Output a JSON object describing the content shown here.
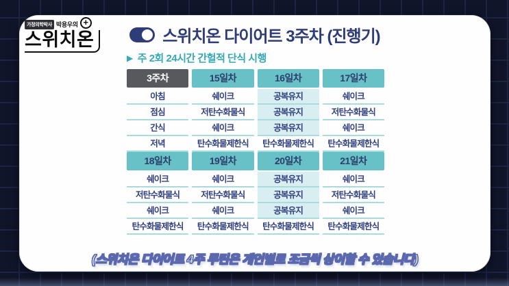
{
  "logo": {
    "badge": "가정의학박사",
    "author": "박용우의",
    "brand": "스위치온",
    "plus": "+"
  },
  "header": {
    "title": "스위치온 다이어트 3주차 (진행기)",
    "subtitle_arrow": "▶",
    "subtitle": "주 2회 24시간 간헐적 단식 시행"
  },
  "tables": [
    {
      "headers": [
        {
          "label": "3주차",
          "variant": "dark"
        },
        {
          "label": "15일차",
          "variant": "teal"
        },
        {
          "label": "16일차",
          "variant": "teal"
        },
        {
          "label": "17일차",
          "variant": "teal"
        }
      ],
      "rows": [
        [
          {
            "text": "아침"
          },
          {
            "text": "쉐이크"
          },
          {
            "text": "공복유지",
            "highlight": true
          },
          {
            "text": "쉐이크"
          }
        ],
        [
          {
            "text": "점심"
          },
          {
            "text": "저탄수화물식"
          },
          {
            "text": "공복유지",
            "highlight": true
          },
          {
            "text": "저탄수화물식"
          }
        ],
        [
          {
            "text": "간식"
          },
          {
            "text": "쉐이크"
          },
          {
            "text": "공복유지",
            "highlight": true
          },
          {
            "text": "쉐이크"
          }
        ],
        [
          {
            "text": "저녁"
          },
          {
            "text": "탄수화물제한식"
          },
          {
            "text": "탄수화물제한식"
          },
          {
            "text": "탄수화물제한식"
          }
        ]
      ]
    },
    {
      "headers": [
        {
          "label": "18일차",
          "variant": "teal"
        },
        {
          "label": "19일차",
          "variant": "teal"
        },
        {
          "label": "20일차",
          "variant": "teal"
        },
        {
          "label": "21일차",
          "variant": "teal"
        }
      ],
      "rows": [
        [
          {
            "text": "쉐이크"
          },
          {
            "text": "쉐이크"
          },
          {
            "text": "공복유지",
            "highlight": true
          },
          {
            "text": "쉐이크"
          }
        ],
        [
          {
            "text": "저탄수화물식"
          },
          {
            "text": "저탄수화물식"
          },
          {
            "text": "공복유지",
            "highlight": true
          },
          {
            "text": "저탄수화물식"
          }
        ],
        [
          {
            "text": "쉐이크"
          },
          {
            "text": "쉐이크"
          },
          {
            "text": "공복유지",
            "highlight": true
          },
          {
            "text": "쉐이크"
          }
        ],
        [
          {
            "text": "탄수화물제한식"
          },
          {
            "text": "탄수화물제한식"
          },
          {
            "text": "탄수화물제한식"
          },
          {
            "text": "탄수화물제한식"
          }
        ]
      ]
    }
  ],
  "footnote": "(스위치온 다이어트 4주 루틴은 개인별로 조금씩 상이할 수 있습니다)",
  "colors": {
    "accent_navy": "#2e3c78",
    "accent_teal": "#35a9b7",
    "header_teal": "#68c1c6",
    "header_dark": "#58595d",
    "cell_highlight": "#d9eef1",
    "row_line": "#a7dbde",
    "cell_text": "#31407e",
    "footnote_outline": "#5b68ae",
    "background": "#10152a"
  }
}
